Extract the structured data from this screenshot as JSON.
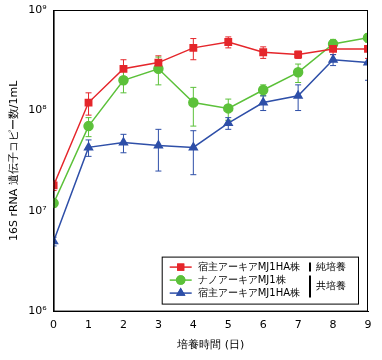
{
  "chart_data": {
    "type": "line",
    "x_label": "培養時間 (日)",
    "y_label": "16S rRNA 遺伝子コピー数/1mL",
    "x": [
      0,
      1,
      2,
      3,
      4,
      5,
      6,
      7,
      8,
      9
    ],
    "xlim": [
      0,
      9
    ],
    "xticks": [
      0,
      1,
      2,
      3,
      4,
      5,
      6,
      7,
      8,
      9
    ],
    "ylim": [
      1000000,
      1000000000
    ],
    "yticks": [
      {
        "value": 1000000,
        "label": "10⁶"
      },
      {
        "value": 10000000,
        "label": "10⁷"
      },
      {
        "value": 100000000,
        "label": "10⁸"
      },
      {
        "value": 1000000000,
        "label": "10⁹"
      }
    ],
    "log": "y",
    "grid": false,
    "legend": "lower right",
    "series": [
      {
        "name": "宿主アーキアMJ1HA株",
        "group": "純培養",
        "color": "#e5262b",
        "marker": "square",
        "values": [
          18000000,
          120000000,
          260000000,
          300000000,
          420000000,
          480000000,
          380000000,
          360000000,
          410000000,
          410000000
        ],
        "errors": [
          2000000,
          30000000,
          60000000,
          50000000,
          100000000,
          60000000,
          50000000,
          30000000,
          50000000,
          80000000
        ]
      },
      {
        "name": "ナノアーキアMJ1株",
        "group": "共培養",
        "color": "#5cc13a",
        "marker": "circle",
        "values": [
          12000000,
          70000000,
          200000000,
          260000000,
          120000000,
          105000000,
          160000000,
          240000000,
          460000000,
          530000000
        ],
        "errors": [
          1000000,
          15000000,
          50000000,
          80000000,
          50000000,
          25000000,
          20000000,
          50000000,
          50000000,
          50000000
        ]
      },
      {
        "name": "宿主アーキアMJ1HA株",
        "group": "共培養",
        "color": "#2e4fa8",
        "marker": "triangle",
        "values": [
          5000000,
          43000000,
          48000000,
          45000000,
          43000000,
          75000000,
          120000000,
          140000000,
          320000000,
          300000000
        ],
        "errors": [
          500000,
          8000000,
          10000000,
          20000000,
          20000000,
          10000000,
          20000000,
          40000000,
          40000000,
          100000000
        ]
      }
    ]
  }
}
